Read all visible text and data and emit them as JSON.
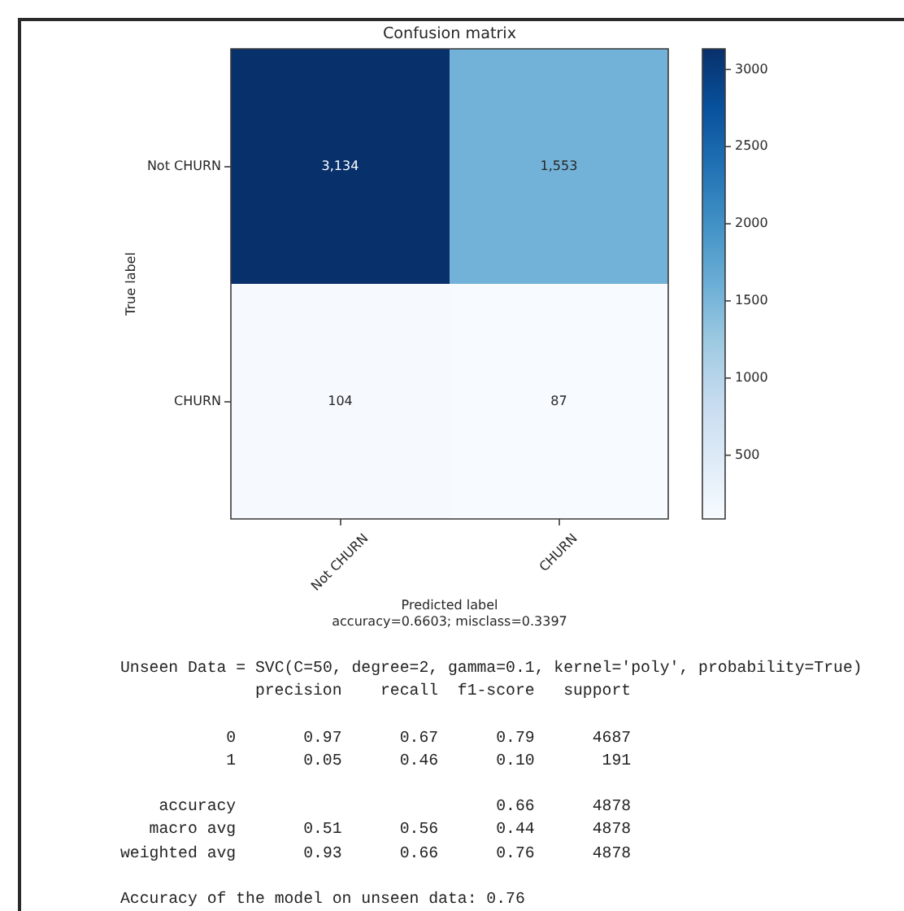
{
  "chart_data": {
    "type": "heatmap",
    "title": "Confusion matrix",
    "xlabel": "Predicted label",
    "ylabel": "True label",
    "categories": [
      "Not CHURN",
      "CHURN"
    ],
    "y_categories": [
      "Not CHURN",
      "CHURN"
    ],
    "cells": [
      [
        3134,
        1553
      ],
      [
        104,
        87
      ]
    ],
    "cell_labels": [
      [
        "3,134",
        "1,553"
      ],
      [
        "104",
        "87"
      ]
    ],
    "clim": [
      87,
      3134
    ],
    "cticks": [
      500,
      1000,
      1500,
      2000,
      2500,
      3000
    ],
    "annotations": [
      "accuracy=0.6603; misclass=0.3397",
      "Unseen Data = SVC(C=50, degree=2, gamma=0.1, kernel='poly', probability=True)\n              precision    recall  f1-score   support\n\n           0       0.97      0.67      0.79      4687\n           1       0.05      0.46      0.10       191\n\n    accuracy                           0.66      4878\n   macro avg       0.51      0.56      0.44      4878\nweighted avg       0.93      0.66      0.76      4878\n",
      "Accuracy of the model on unseen data: 0.76"
    ]
  }
}
